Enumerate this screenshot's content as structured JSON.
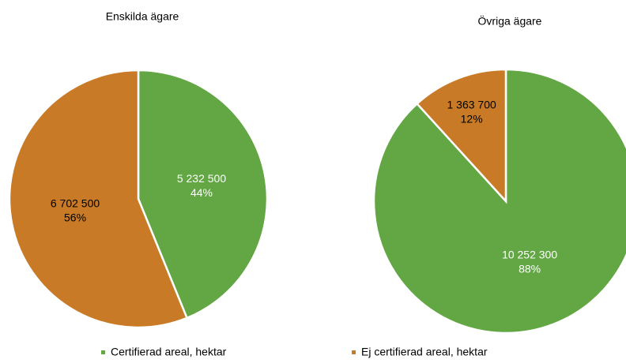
{
  "chart_data": [
    {
      "type": "pie",
      "title": "Enskilda ägare",
      "categories": [
        "Certifierad areal, hektar",
        "Ej certifierad areal, hektar"
      ],
      "values": [
        5232500,
        6702500
      ],
      "value_labels": [
        "5 232 500",
        "6 702 500"
      ],
      "percent_labels": [
        "44%",
        "56%"
      ],
      "colors": [
        "#62a744",
        "#c87a26"
      ],
      "legend": "bottom"
    },
    {
      "type": "pie",
      "title": "Övriga ägare",
      "categories": [
        "Certifierad areal, hektar",
        "Ej certifierad areal, hektar"
      ],
      "values": [
        10252300,
        1363700
      ],
      "value_labels": [
        "10 252 300",
        "1 363 700"
      ],
      "percent_labels": [
        "88%",
        "12%"
      ],
      "colors": [
        "#62a744",
        "#c87a26"
      ],
      "legend": "bottom"
    }
  ]
}
